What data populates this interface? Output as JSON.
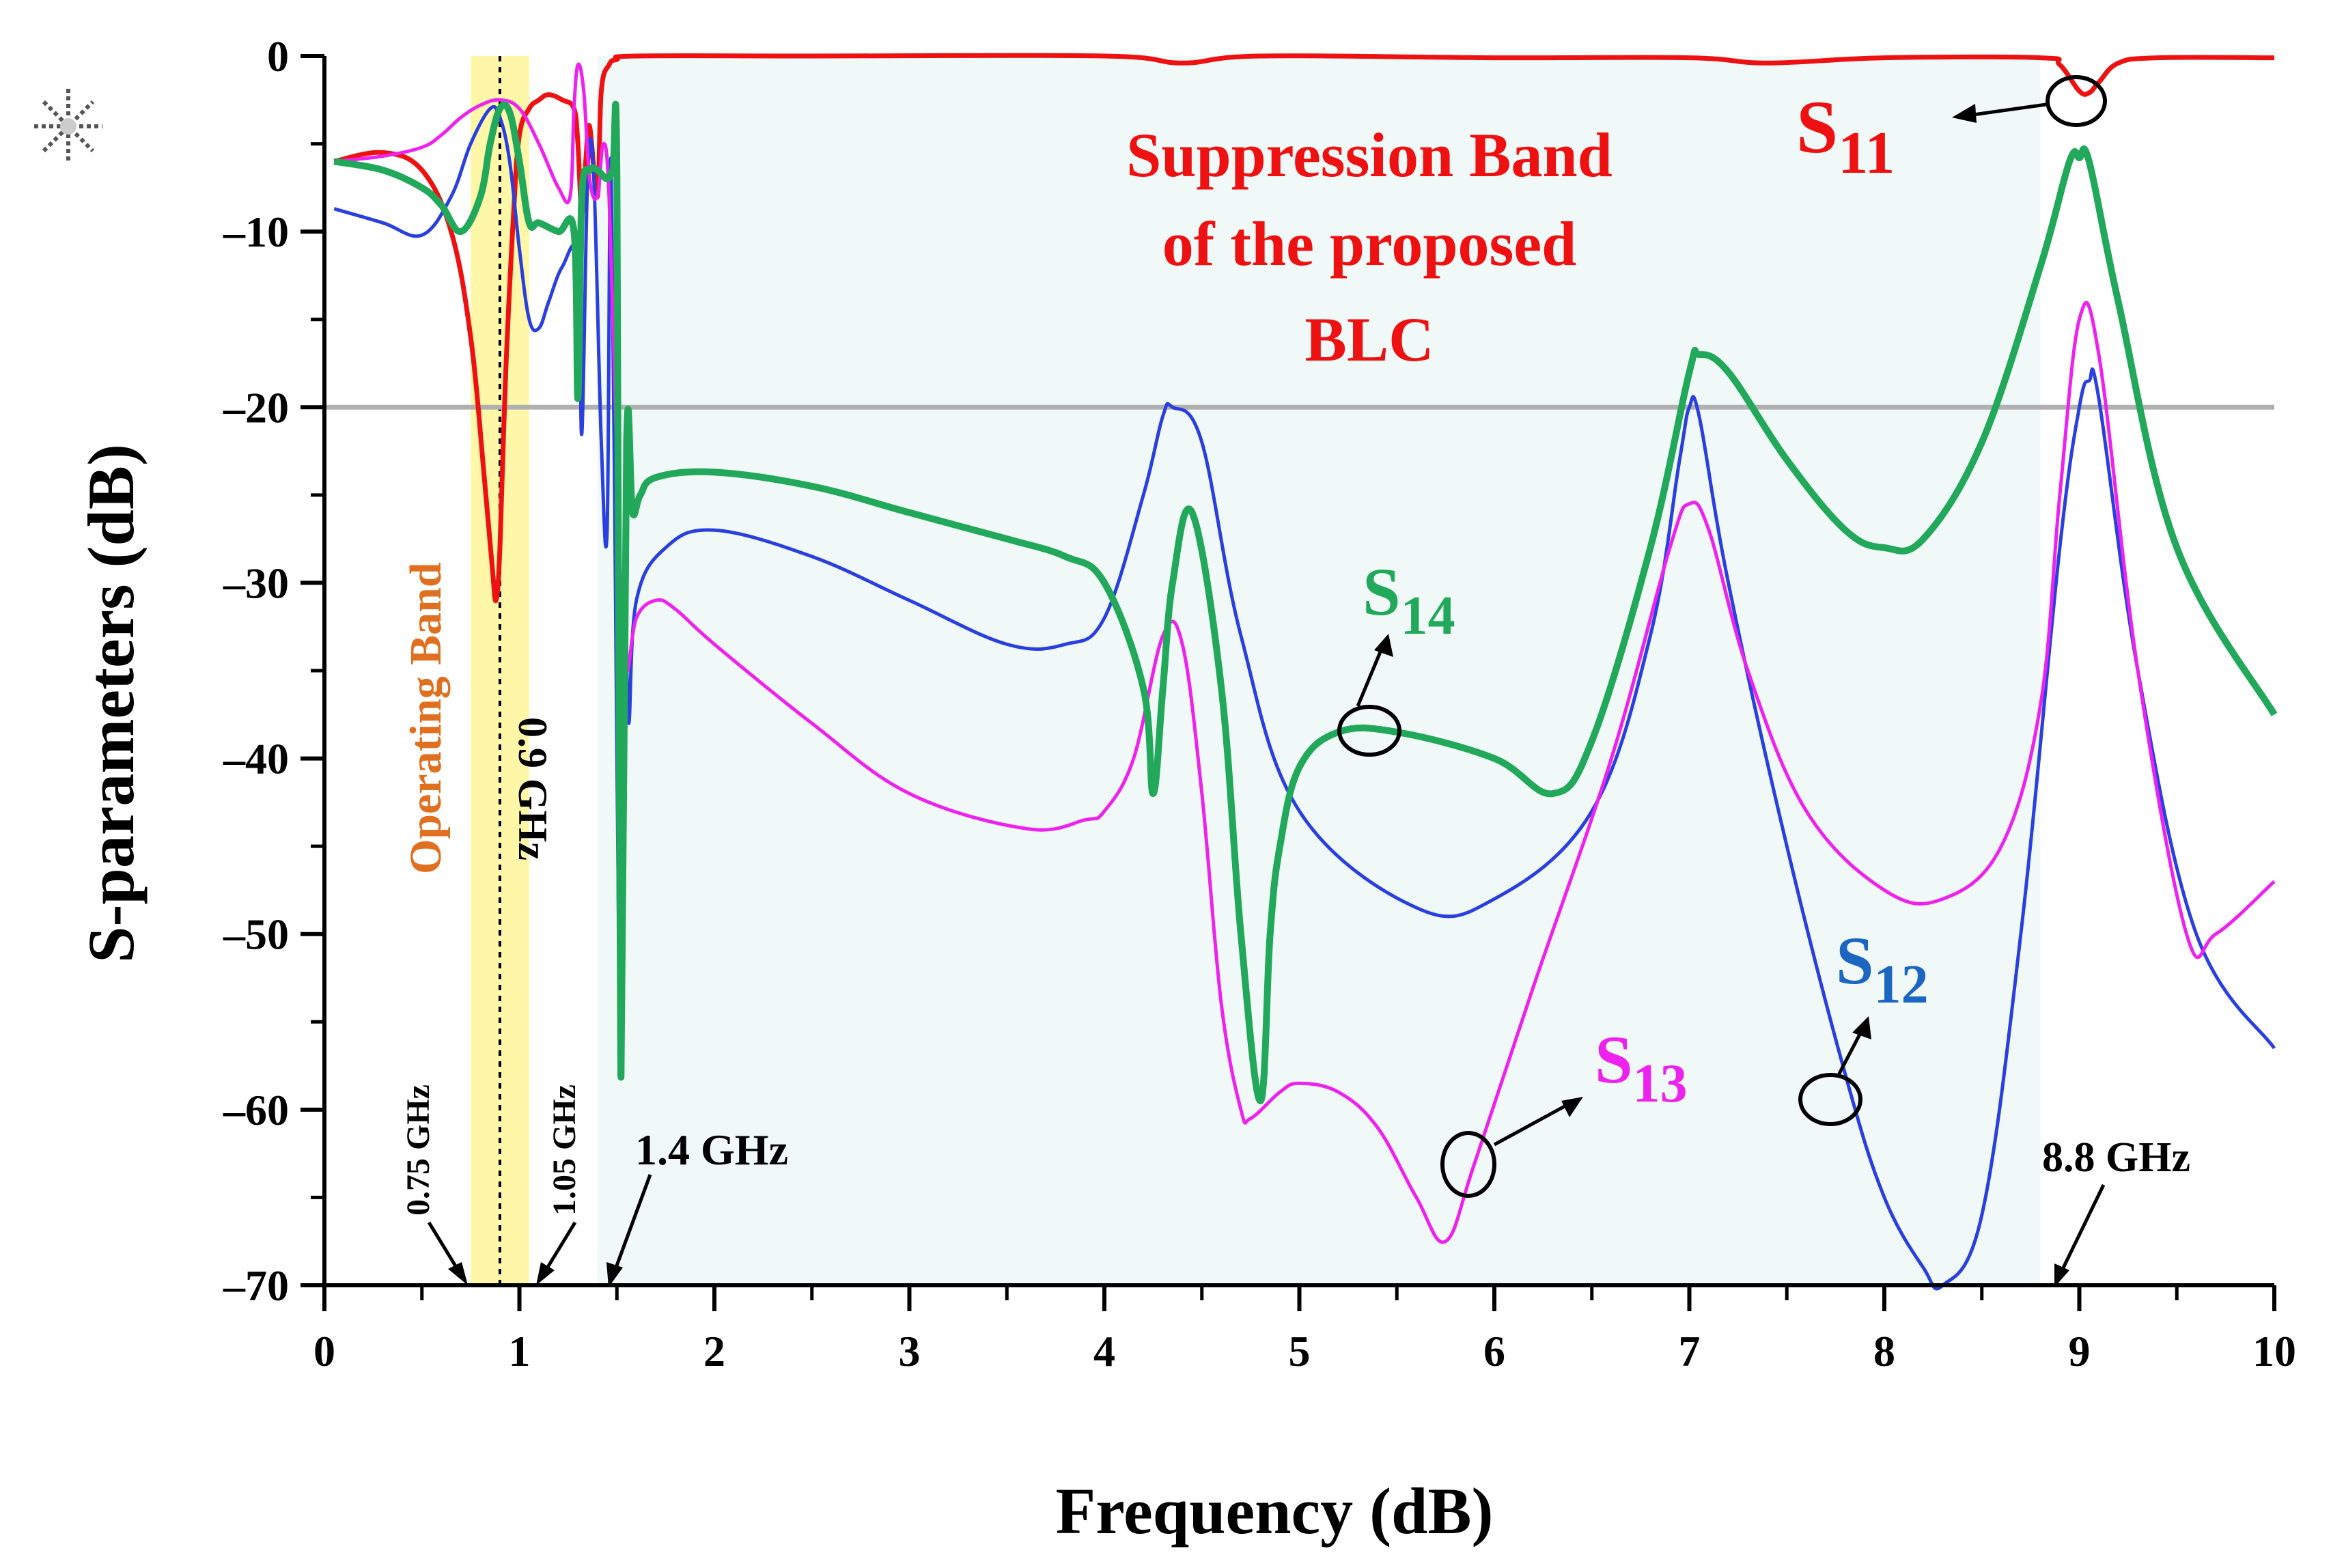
{
  "chart_data": {
    "type": "line",
    "title": "",
    "xlabel": "Frequency (dB)",
    "ylabel": "S-parameters (dB)",
    "xlim": [
      0,
      10
    ],
    "ylim": [
      -70,
      0
    ],
    "x_ticks": [
      0,
      1,
      2,
      3,
      4,
      5,
      6,
      7,
      8,
      9,
      10
    ],
    "x_tick_labels": [
      "0",
      "1",
      "2",
      "3",
      "4",
      "5",
      "6",
      "7",
      "8",
      "9",
      "10"
    ],
    "y_ticks": [
      0,
      -10,
      -20,
      -30,
      -40,
      -50,
      -60,
      -70
    ],
    "y_tick_labels": [
      "0",
      "–10",
      "–20",
      "–30",
      "–40",
      "–50",
      "–60",
      "–70"
    ],
    "reference_line": {
      "y": -20,
      "color": "#b0b0b0"
    },
    "operating_band": {
      "start": 0.75,
      "end": 1.05,
      "center": 0.9,
      "label": "Operating Band",
      "label_color": "#e07020",
      "fill": "#fff7a8"
    },
    "suppression_band": {
      "start": 1.4,
      "end": 8.8,
      "label_lines": [
        "Suppression Band",
        "of the proposed",
        "BLC"
      ],
      "label_color": "#ee1111",
      "fill": "#f1f9f8"
    },
    "marker_labels": {
      "f075": "0.75 GHz",
      "f09": "0.9 GHz",
      "f105": "1.05 GHz",
      "f14": "1.4 GHz",
      "f88": "8.8 GHz"
    },
    "series": [
      {
        "name": "S11",
        "label": "S",
        "sub": "11",
        "color": "#ee1111",
        "x": [
          0.05,
          0.3,
          0.5,
          0.65,
          0.75,
          0.82,
          0.86,
          0.88,
          0.9,
          0.93,
          0.97,
          1.0,
          1.05,
          1.1,
          1.15,
          1.22,
          1.28,
          1.3,
          1.32,
          1.34,
          1.36,
          1.4,
          1.42,
          1.46,
          1.5,
          1.6,
          2.5,
          4.0,
          4.4,
          4.8,
          6.0,
          7.0,
          7.4,
          8.0,
          8.8,
          8.9,
          9.0,
          9.05,
          9.1,
          9.2,
          9.4,
          10.0
        ],
        "values": [
          -6,
          -5.5,
          -6.5,
          -10,
          -16,
          -24,
          -29,
          -31,
          -28,
          -18,
          -9,
          -4.5,
          -3,
          -2.5,
          -2.2,
          -2.5,
          -3,
          -5,
          -9,
          -6,
          -4,
          -8,
          -2,
          -0.5,
          -0.2,
          0,
          0,
          0,
          -0.4,
          0,
          -0.1,
          -0.1,
          -0.4,
          -0.1,
          -0.1,
          -0.5,
          -2,
          -2.1,
          -1.5,
          -0.4,
          -0.1,
          -0.1
        ]
      },
      {
        "name": "S12",
        "label": "S",
        "sub": "12",
        "color": "#2a3fe0",
        "x": [
          0.05,
          0.3,
          0.5,
          0.65,
          0.75,
          0.85,
          0.9,
          0.95,
          1.0,
          1.05,
          1.1,
          1.15,
          1.22,
          1.3,
          1.32,
          1.35,
          1.38,
          1.42,
          1.45,
          1.47,
          1.5,
          1.52,
          1.54,
          1.56,
          1.6,
          1.75,
          2.0,
          2.5,
          3.0,
          3.5,
          3.8,
          4.0,
          4.2,
          4.3,
          4.35,
          4.5,
          4.7,
          5.0,
          5.6,
          6.0,
          6.5,
          6.8,
          6.95,
          7.0,
          7.05,
          7.2,
          7.5,
          7.8,
          8.0,
          8.2,
          8.3,
          8.5,
          8.7,
          8.9,
          9.0,
          9.05,
          9.1,
          9.3,
          9.6,
          10.0
        ],
        "values": [
          -8.7,
          -9.5,
          -10.2,
          -8,
          -5,
          -3,
          -3.5,
          -6,
          -11,
          -15,
          -15.5,
          -14,
          -12,
          -11.5,
          -21.5,
          -7,
          -6.5,
          -22,
          -27,
          -6,
          -40,
          -56,
          -30,
          -38,
          -31,
          -28,
          -27,
          -28.5,
          -31,
          -33.5,
          -33.5,
          -32,
          -25,
          -20.5,
          -20,
          -22,
          -33,
          -43,
          -48.5,
          -48,
          -43,
          -33,
          -23,
          -20,
          -20.5,
          -30,
          -45,
          -58,
          -65,
          -69,
          -70,
          -66,
          -50,
          -28,
          -20,
          -18.5,
          -19.5,
          -35,
          -50,
          -56.5
        ]
      },
      {
        "name": "S13",
        "label": "S",
        "sub": "13",
        "color": "#ee22ee",
        "x": [
          0.05,
          0.3,
          0.5,
          0.6,
          0.7,
          0.8,
          0.9,
          1.0,
          1.1,
          1.2,
          1.26,
          1.28,
          1.3,
          1.33,
          1.36,
          1.4,
          1.43,
          1.46,
          1.5,
          1.52,
          1.55,
          1.6,
          1.7,
          1.8,
          2.0,
          2.5,
          3.0,
          3.6,
          3.9,
          4.0,
          4.15,
          4.3,
          4.4,
          4.5,
          4.6,
          4.7,
          4.75,
          4.9,
          5.0,
          5.2,
          5.4,
          5.6,
          5.75,
          5.9,
          6.2,
          6.6,
          6.9,
          7.0,
          7.1,
          7.3,
          7.6,
          8.0,
          8.3,
          8.6,
          8.8,
          8.9,
          9.0,
          9.1,
          9.3,
          9.55,
          9.7,
          10.0
        ],
        "values": [
          -6,
          -5.7,
          -5.2,
          -4.5,
          -3.5,
          -2.8,
          -2.5,
          -3,
          -5,
          -7.5,
          -8,
          -3,
          -0.5,
          -2,
          -7,
          -8,
          -5,
          -8,
          -23,
          -30,
          -35,
          -32,
          -31,
          -31.5,
          -33.5,
          -38,
          -42,
          -44,
          -43.5,
          -43,
          -40,
          -33,
          -33.5,
          -42,
          -54,
          -60,
          -60.5,
          -59,
          -58.5,
          -59,
          -61,
          -65,
          -67.5,
          -63,
          -53,
          -40,
          -28,
          -25.5,
          -27,
          -35,
          -43,
          -47.5,
          -48,
          -45,
          -37,
          -25,
          -15,
          -17,
          -35,
          -50,
          -50,
          -47
        ]
      },
      {
        "name": "S14",
        "label": "S",
        "sub": "14",
        "color": "#22a85a",
        "x": [
          0.05,
          0.3,
          0.5,
          0.6,
          0.7,
          0.8,
          0.85,
          0.9,
          0.95,
          1.0,
          1.05,
          1.1,
          1.2,
          1.28,
          1.3,
          1.32,
          1.36,
          1.4,
          1.45,
          1.48,
          1.5,
          1.52,
          1.55,
          1.58,
          1.62,
          1.7,
          2.0,
          2.5,
          3.0,
          3.5,
          3.8,
          4.0,
          4.2,
          4.25,
          4.3,
          4.35,
          4.45,
          4.6,
          4.7,
          4.8,
          4.85,
          4.9,
          5.0,
          5.2,
          5.5,
          6.0,
          6.3,
          6.5,
          6.8,
          7.0,
          7.05,
          7.2,
          7.5,
          7.8,
          8.0,
          8.2,
          8.5,
          8.8,
          8.95,
          9.0,
          9.05,
          9.2,
          9.5,
          10.0
        ],
        "values": [
          -6,
          -6.5,
          -7.5,
          -8.5,
          -10,
          -8,
          -5,
          -3,
          -3.2,
          -6,
          -9.5,
          -9.5,
          -10,
          -10,
          -19.5,
          -8,
          -6.5,
          -6.5,
          -7,
          -6.5,
          -7,
          -58,
          -22,
          -26,
          -25,
          -24,
          -23.7,
          -24.5,
          -26,
          -27.5,
          -28.5,
          -30,
          -36,
          -42,
          -36,
          -30,
          -26,
          -36,
          -50,
          -59.5,
          -50,
          -45,
          -40.5,
          -38.5,
          -38.5,
          -40,
          -42,
          -39,
          -28,
          -18,
          -17,
          -18,
          -23,
          -27,
          -28,
          -27.5,
          -22,
          -12,
          -6,
          -5.8,
          -6,
          -14,
          -28,
          -37.5
        ]
      }
    ]
  }
}
